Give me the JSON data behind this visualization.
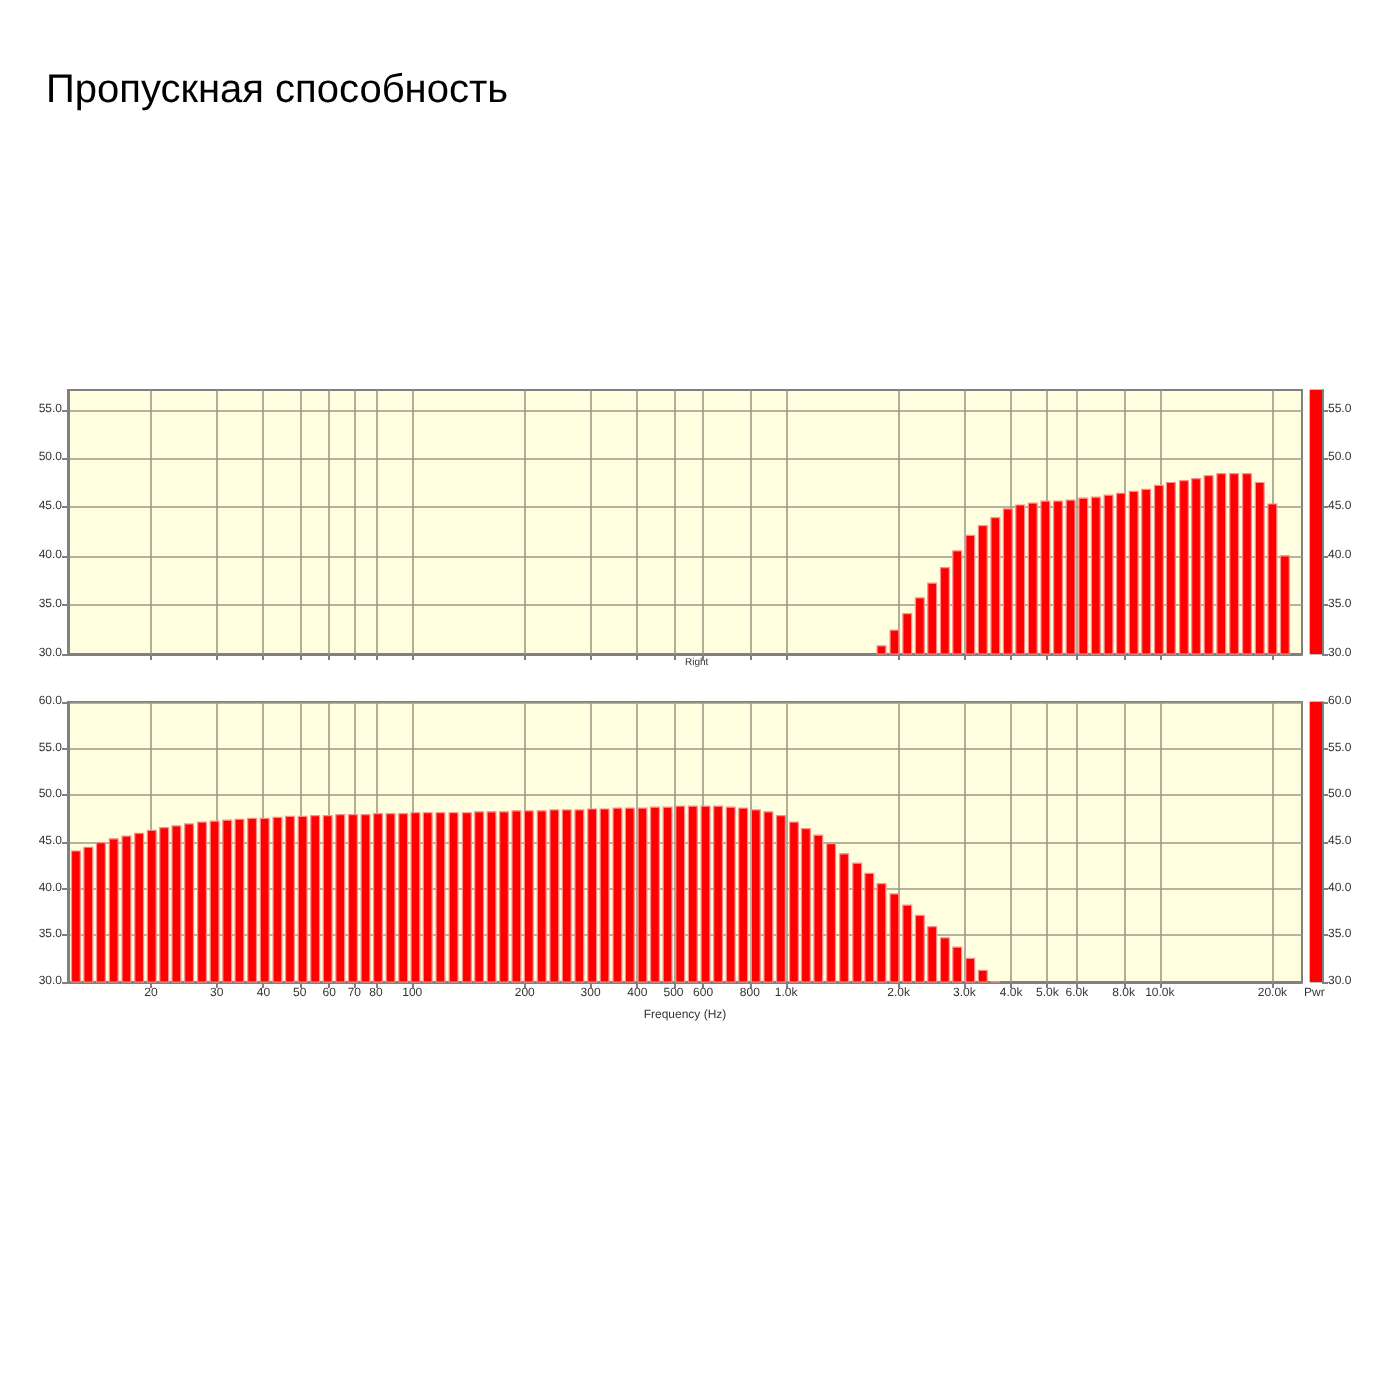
{
  "chart_data": [
    {
      "type": "bar",
      "title": "Пропускная способность",
      "x": [
        1800,
        1950,
        2110,
        2280,
        2460,
        2660,
        2870,
        3110,
        3360,
        3630,
        3920,
        4230,
        4570,
        4940,
        5340,
        5770,
        6240,
        6740,
        7290,
        7870,
        8510,
        9190,
        9940,
        10700,
        11600,
        12500,
        13500,
        14600,
        15800,
        17100,
        18500,
        20000,
        21600
      ],
      "series": [
        {
          "color": "#ff0000",
          "values": [
            30.9,
            32.5,
            34.2,
            35.8,
            37.3,
            38.9,
            40.6,
            42.2,
            43.2,
            44.0,
            44.9,
            45.3,
            45.5,
            45.7,
            45.7,
            45.8,
            46.0,
            46.1,
            46.3,
            46.5,
            46.7,
            46.9,
            47.3,
            47.6,
            47.8,
            48.0,
            48.3,
            48.5,
            48.5,
            48.5,
            47.6,
            45.4,
            40.1
          ]
        }
      ],
      "log": "x",
      "xlim": [
        12,
        24000
      ],
      "xticks": [
        20,
        30,
        40,
        50,
        60,
        70,
        80,
        100,
        200,
        300,
        400,
        500,
        600,
        800,
        1000,
        2000,
        3000,
        4000,
        5000,
        6000,
        8000,
        10000,
        20000
      ],
      "ylim": [
        30,
        57
      ],
      "yticks": [
        {
          "value": 30,
          "label": "30.0"
        },
        {
          "value": 35,
          "label": "35.0"
        },
        {
          "value": 40,
          "label": "40.0"
        },
        {
          "value": 45,
          "label": "45.0"
        },
        {
          "value": 50,
          "label": "50.0"
        },
        {
          "value": 55,
          "label": "55.0"
        }
      ],
      "y2lim": [
        30,
        57
      ],
      "y2ticks": [
        {
          "value": 30,
          "label": "30.0"
        },
        {
          "value": 35,
          "label": "35.0"
        },
        {
          "value": 40,
          "label": "40.0"
        },
        {
          "value": 45,
          "label": "45.0"
        },
        {
          "value": 50,
          "label": "50.0"
        },
        {
          "value": 55,
          "label": "55.0"
        }
      ],
      "tick_labels": "y",
      "grid": true,
      "annotations": [
        "Right"
      ]
    },
    {
      "type": "bar",
      "xlabel": "Frequency (Hz)",
      "x": [
        12.6,
        13.6,
        14.7,
        15.9,
        17.2,
        18.6,
        20.1,
        21.7,
        23.4,
        25.3,
        27.4,
        29.6,
        32,
        34.5,
        37.3,
        40.3,
        43.6,
        47.1,
        50.9,
        55,
        59.4,
        64.2,
        69.4,
        75,
        81,
        87.5,
        94.6,
        102,
        110,
        119,
        129,
        140,
        151,
        163,
        176,
        190,
        205,
        222,
        240,
        259,
        280,
        303,
        327,
        354,
        382,
        413,
        446,
        482,
        521,
        563,
        609,
        658,
        711,
        768,
        830,
        897,
        969,
        1050,
        1130,
        1220,
        1320,
        1430,
        1550,
        1670,
        1800,
        1950,
        2110,
        2280,
        2460,
        2660,
        2870,
        3110,
        3360,
        3630
      ],
      "series": [
        {
          "color": "#ff0000",
          "values": [
            44.1,
            44.5,
            45.0,
            45.4,
            45.7,
            46.0,
            46.3,
            46.6,
            46.8,
            47.0,
            47.2,
            47.3,
            47.4,
            47.5,
            47.6,
            47.6,
            47.7,
            47.8,
            47.8,
            47.9,
            47.9,
            48.0,
            48.0,
            48.0,
            48.1,
            48.1,
            48.1,
            48.2,
            48.2,
            48.2,
            48.2,
            48.2,
            48.3,
            48.3,
            48.3,
            48.4,
            48.4,
            48.4,
            48.5,
            48.5,
            48.5,
            48.6,
            48.6,
            48.7,
            48.7,
            48.7,
            48.8,
            48.8,
            48.9,
            48.9,
            48.9,
            48.9,
            48.8,
            48.7,
            48.5,
            48.3,
            47.9,
            47.2,
            46.5,
            45.8,
            44.9,
            43.8,
            42.8,
            41.7,
            40.6,
            39.5,
            38.3,
            37.2,
            36.0,
            34.8,
            33.8,
            32.6,
            31.3,
            30.1
          ]
        }
      ],
      "log": "x",
      "xlim": [
        12,
        24000
      ],
      "xticks": [
        20,
        30,
        40,
        50,
        60,
        70,
        80,
        100,
        200,
        300,
        400,
        500,
        600,
        800,
        {
          "value": 1000,
          "label": "1.0k"
        },
        {
          "value": 2000,
          "label": "2.0k"
        },
        {
          "value": 3000,
          "label": "3.0k"
        },
        {
          "value": 4000,
          "label": "4.0k"
        },
        {
          "value": 5000,
          "label": "5.0k"
        },
        {
          "value": 6000,
          "label": "6.0k"
        },
        {
          "value": 8000,
          "label": "8.0k"
        },
        {
          "value": 10000,
          "label": "10.0k"
        },
        {
          "value": 20000,
          "label": "20.0k"
        }
      ],
      "ylim": [
        30,
        60
      ],
      "yticks": [
        {
          "value": 30,
          "label": "30.0"
        },
        {
          "value": 35,
          "label": "35.0"
        },
        {
          "value": 40,
          "label": "40.0"
        },
        {
          "value": 45,
          "label": "45.0"
        },
        {
          "value": 50,
          "label": "50.0"
        },
        {
          "value": 55,
          "label": "55.0"
        },
        {
          "value": 60,
          "label": "60.0"
        }
      ],
      "y2lim": [
        30,
        60
      ],
      "y2ticks": [
        {
          "value": 30,
          "label": "30.0"
        },
        {
          "value": 35,
          "label": "35.0"
        },
        {
          "value": 40,
          "label": "40.0"
        },
        {
          "value": 45,
          "label": "45.0"
        },
        {
          "value": 50,
          "label": "50.0"
        },
        {
          "value": 55,
          "label": "55.0"
        },
        {
          "value": 60,
          "label": "60.0"
        }
      ],
      "grid": true,
      "annotations": [
        "Pwr"
      ]
    }
  ]
}
